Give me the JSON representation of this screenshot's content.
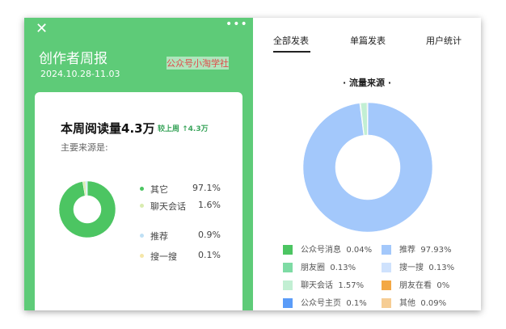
{
  "header": {
    "close_icon": "close-icon",
    "more_icon": "more-icon",
    "title": "创作者周报",
    "date": "2024.10.28-11.03",
    "watermark": "公众号小淘学社"
  },
  "summary": {
    "reads": "本周阅读量4.3万",
    "compare": "较上周 ↑4.3万",
    "source_label": "主要来源是:"
  },
  "left_chart": {
    "type": "pie",
    "items": [
      {
        "name": "其它",
        "value": 97.1,
        "label": "97.1%",
        "color": "#4cc562"
      },
      {
        "name": "聊天会话",
        "value": 1.6,
        "label": "1.6%",
        "color": "#d9ecb0"
      },
      {
        "name": "推荐",
        "value": 0.9,
        "label": "0.9%",
        "color": "#bfe0f5"
      },
      {
        "name": "搜一搜",
        "value": 0.1,
        "label": "0.1%",
        "color": "#f5e6a8"
      }
    ]
  },
  "tabs": [
    {
      "label": "全部发表",
      "active": true
    },
    {
      "label": "单篇发表"
    },
    {
      "label": "用户统计"
    }
  ],
  "chart_data": {
    "type": "pie",
    "title": "· 流量来源 ·",
    "items": [
      {
        "name": "公众号消息",
        "label": "0.04%",
        "value": 0.04,
        "color": "#4cc562"
      },
      {
        "name": "推荐",
        "label": "97.93%",
        "value": 97.93,
        "color": "#a3c8fb"
      },
      {
        "name": "朋友圈",
        "label": "0.13%",
        "value": 0.13,
        "color": "#7edba4"
      },
      {
        "name": "搜一搜",
        "label": "0.13%",
        "value": 0.13,
        "color": "#cfe2fd"
      },
      {
        "name": "聊天会话",
        "label": "1.57%",
        "value": 1.57,
        "color": "#c2efd3"
      },
      {
        "name": "朋友在看",
        "label": "0%",
        "value": 0,
        "color": "#f3a844"
      },
      {
        "name": "公众号主页",
        "label": "0.1%",
        "value": 0.1,
        "color": "#5b9cf8"
      },
      {
        "name": "其他",
        "label": "0.09%",
        "value": 0.09,
        "color": "#f6cd94"
      }
    ]
  }
}
